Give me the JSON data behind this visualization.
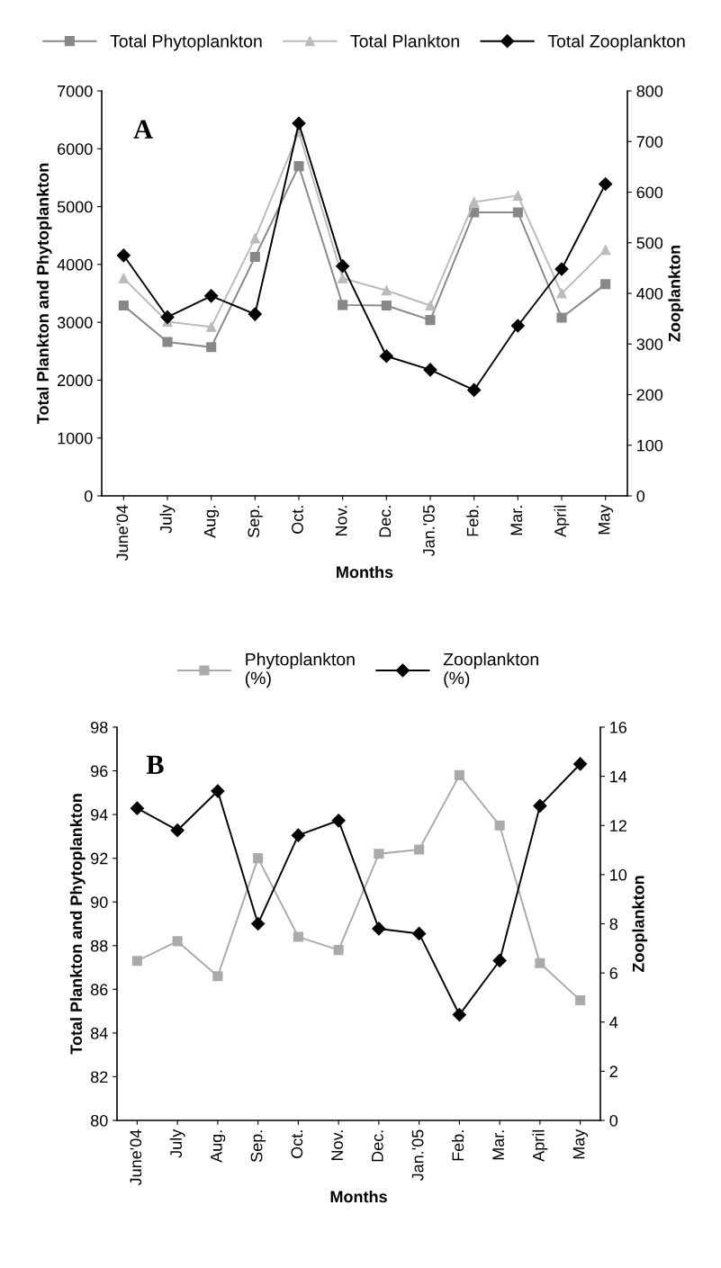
{
  "chart_data": [
    {
      "type": "line",
      "categories": [
        "June'04",
        "July",
        "Aug.",
        "Sep.",
        "Oct.",
        "Nov.",
        "Dec.",
        "Jan.'05",
        "Feb.",
        "Mar.",
        "April",
        "May"
      ],
      "xlabel": "Months",
      "ylabel": "Total Plankton and Phytoplankton",
      "y2label": "Zooplankton",
      "annotations": [
        "A"
      ],
      "ylim": [
        0,
        7000
      ],
      "yticks": [
        0,
        1000,
        2000,
        3000,
        4000,
        5000,
        6000,
        7000
      ],
      "y2lim": [
        0,
        800
      ],
      "y2ticks": [
        0,
        100,
        200,
        300,
        400,
        500,
        600,
        700,
        800
      ],
      "legend": "top",
      "grid": false,
      "series": [
        {
          "name": "Total Phytoplankton",
          "color": "#888888",
          "marker": "square",
          "values": [
            3290,
            2660,
            2570,
            4130,
            5700,
            3300,
            3290,
            3040,
            4900,
            4900,
            3080,
            3660
          ]
        },
        {
          "name": "Total Plankton",
          "color": "#bbbbbb",
          "marker": "triangle",
          "values": [
            3760,
            3010,
            2920,
            4450,
            6290,
            3760,
            3550,
            3290,
            5080,
            5190,
            3500,
            4250
          ]
        },
        {
          "name": "Total Zooplankton",
          "color": "#000000",
          "marker": "diamond",
          "axis": "y2",
          "values": [
            475,
            353,
            395,
            359,
            736,
            454,
            276,
            249,
            209,
            336,
            448,
            616
          ]
        }
      ]
    },
    {
      "type": "line",
      "categories": [
        "June'04",
        "July",
        "Aug.",
        "Sep.",
        "Oct.",
        "Nov.",
        "Dec.",
        "Jan.'05",
        "Feb.",
        "Mar.",
        "April",
        "May"
      ],
      "xlabel": "Months",
      "ylabel": "Total Plankton and Phytoplankton",
      "y2label": "Zooplankton",
      "annotations": [
        "B"
      ],
      "ylim": [
        80,
        98
      ],
      "yticks": [
        80,
        82,
        84,
        86,
        88,
        90,
        92,
        94,
        96,
        98
      ],
      "y2lim": [
        0,
        16
      ],
      "y2ticks": [
        0,
        2,
        4,
        6,
        8,
        10,
        12,
        14,
        16
      ],
      "legend": "top",
      "grid": false,
      "series": [
        {
          "name": "Phytoplankton\n(%)",
          "color": "#aaaaaa",
          "marker": "square",
          "values": [
            87.3,
            88.2,
            86.6,
            92.0,
            88.4,
            87.8,
            92.2,
            92.4,
            95.8,
            93.5,
            87.2,
            85.5
          ]
        },
        {
          "name": "Zooplankton\n(%)",
          "color": "#000000",
          "marker": "diamond",
          "axis": "y2",
          "values": [
            12.7,
            11.8,
            13.4,
            8.0,
            11.6,
            12.2,
            7.8,
            7.6,
            4.3,
            6.5,
            12.8,
            14.5
          ]
        }
      ]
    }
  ]
}
